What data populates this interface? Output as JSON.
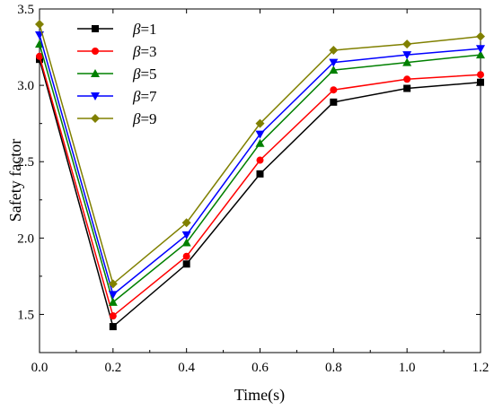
{
  "chart_data": {
    "type": "line",
    "title": "",
    "xlabel": "Time(s)",
    "ylabel": "Safety factor",
    "xlim": [
      0.0,
      1.2
    ],
    "ylim": [
      1.25,
      3.5
    ],
    "x": [
      0.0,
      0.2,
      0.4,
      0.6,
      0.8,
      1.0,
      1.2
    ],
    "x_ticks": [
      "0.0",
      "0.2",
      "0.4",
      "0.6",
      "0.8",
      "1.0",
      "1.2"
    ],
    "y_ticks": [
      "1.5",
      "2.0",
      "2.5",
      "3.0",
      "3.5"
    ],
    "grid": false,
    "legend_position": "top-left",
    "legend_symbol": "β",
    "series": [
      {
        "name": "=1",
        "color": "#000000",
        "marker": "square",
        "values": [
          3.17,
          1.42,
          1.83,
          2.42,
          2.89,
          2.98,
          3.02
        ]
      },
      {
        "name": "=3",
        "color": "#ff0000",
        "marker": "circle",
        "values": [
          3.19,
          1.49,
          1.88,
          2.51,
          2.97,
          3.04,
          3.07
        ]
      },
      {
        "name": "=5",
        "color": "#008000",
        "marker": "triangle-up",
        "values": [
          3.27,
          1.58,
          1.97,
          2.62,
          3.1,
          3.15,
          3.2
        ]
      },
      {
        "name": "=7",
        "color": "#0000ff",
        "marker": "triangle-down",
        "values": [
          3.33,
          1.63,
          2.02,
          2.68,
          3.15,
          3.2,
          3.24
        ]
      },
      {
        "name": "=9",
        "color": "#808000",
        "marker": "diamond",
        "values": [
          3.4,
          1.7,
          2.1,
          2.75,
          3.23,
          3.27,
          3.32
        ]
      }
    ]
  }
}
